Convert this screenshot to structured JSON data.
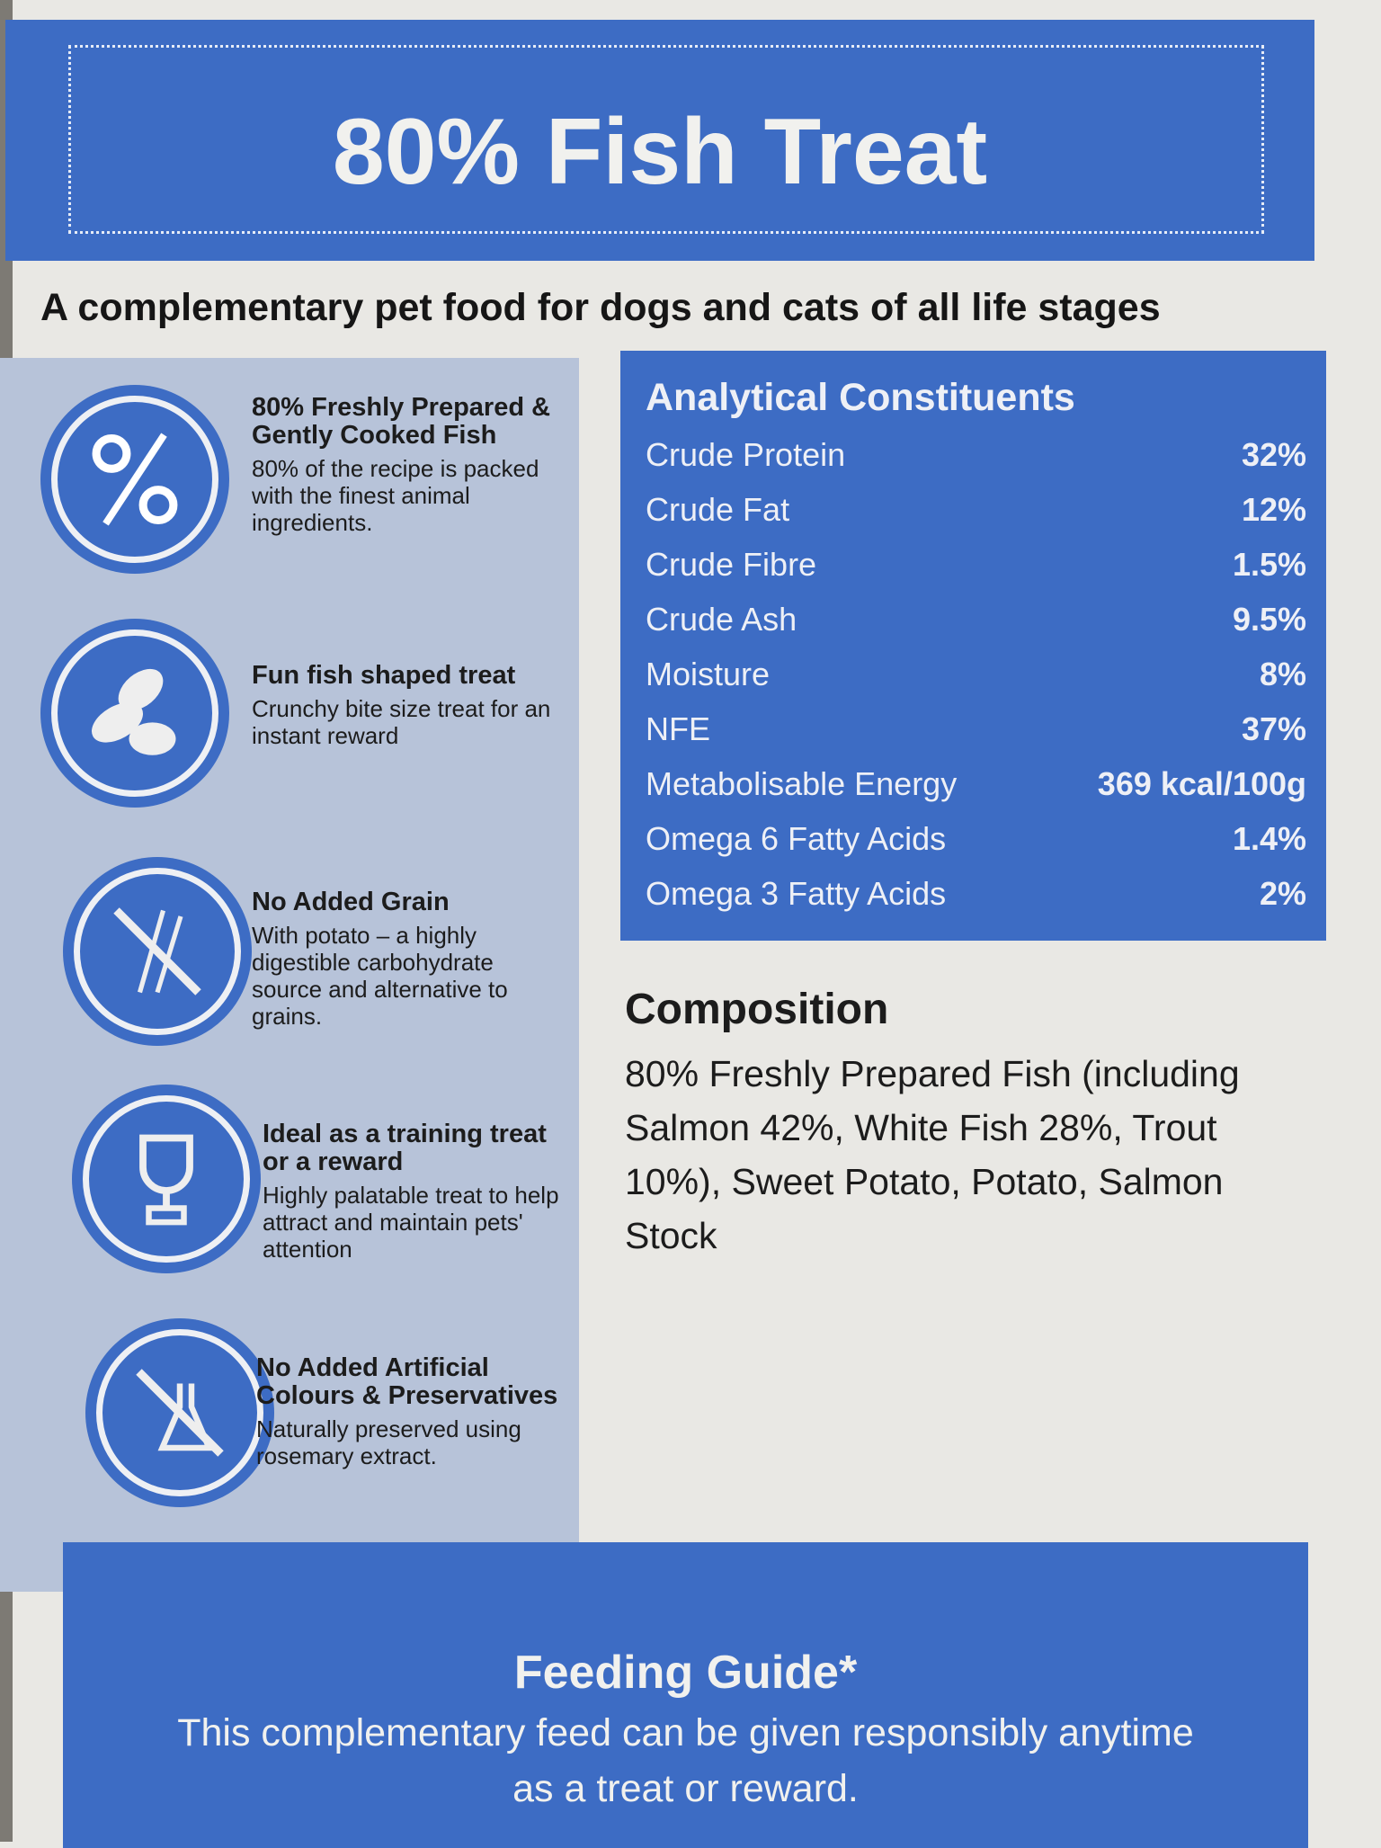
{
  "header": {
    "title": "80% Fish Treat"
  },
  "subtitle": "A complementary pet food for dogs and cats of all life stages",
  "features": [
    {
      "icon": "percent-icon",
      "title": "80% Freshly Prepared & Gently Cooked Fish",
      "description": "80% of the recipe is packed with the finest animal ingredients."
    },
    {
      "icon": "fish-treat-icon",
      "title": "Fun fish shaped treat",
      "description": "Crunchy bite size treat for an instant reward"
    },
    {
      "icon": "no-grain-icon",
      "title": "No Added Grain",
      "description": "With potato – a highly digestible carbohydrate source and alternative to grains."
    },
    {
      "icon": "trophy-icon",
      "title": "Ideal as a training treat or a reward",
      "description": "Highly palatable treat to help attract and maintain pets' attention"
    },
    {
      "icon": "no-chemicals-icon",
      "title": "No Added Artificial Colours & Preservatives",
      "description": "Naturally preserved using rosemary extract."
    }
  ],
  "analytical": {
    "title": "Analytical Constituents",
    "rows": [
      {
        "label": "Crude Protein",
        "value": "32%"
      },
      {
        "label": "Crude Fat",
        "value": "12%"
      },
      {
        "label": "Crude Fibre",
        "value": "1.5%"
      },
      {
        "label": "Crude Ash",
        "value": "9.5%"
      },
      {
        "label": "Moisture",
        "value": "8%"
      },
      {
        "label": "NFE",
        "value": "37%"
      },
      {
        "label": "Metabolisable Energy",
        "value": "369 kcal/100g"
      },
      {
        "label": "Omega 6 Fatty Acids",
        "value": "1.4%"
      },
      {
        "label": "Omega 3 Fatty Acids",
        "value": "2%"
      }
    ]
  },
  "composition": {
    "title": "Composition",
    "text": "80% Freshly Prepared Fish (including Salmon 42%, White Fish 28%, Trout 10%), Sweet Potato, Potato, Salmon Stock"
  },
  "feeding": {
    "title": "Feeding Guide*",
    "text": "This complementary feed can be given responsibly anytime as a treat or reward."
  },
  "colors": {
    "brand_blue": "#3d6cc4",
    "panel": "#b7c3d9"
  }
}
